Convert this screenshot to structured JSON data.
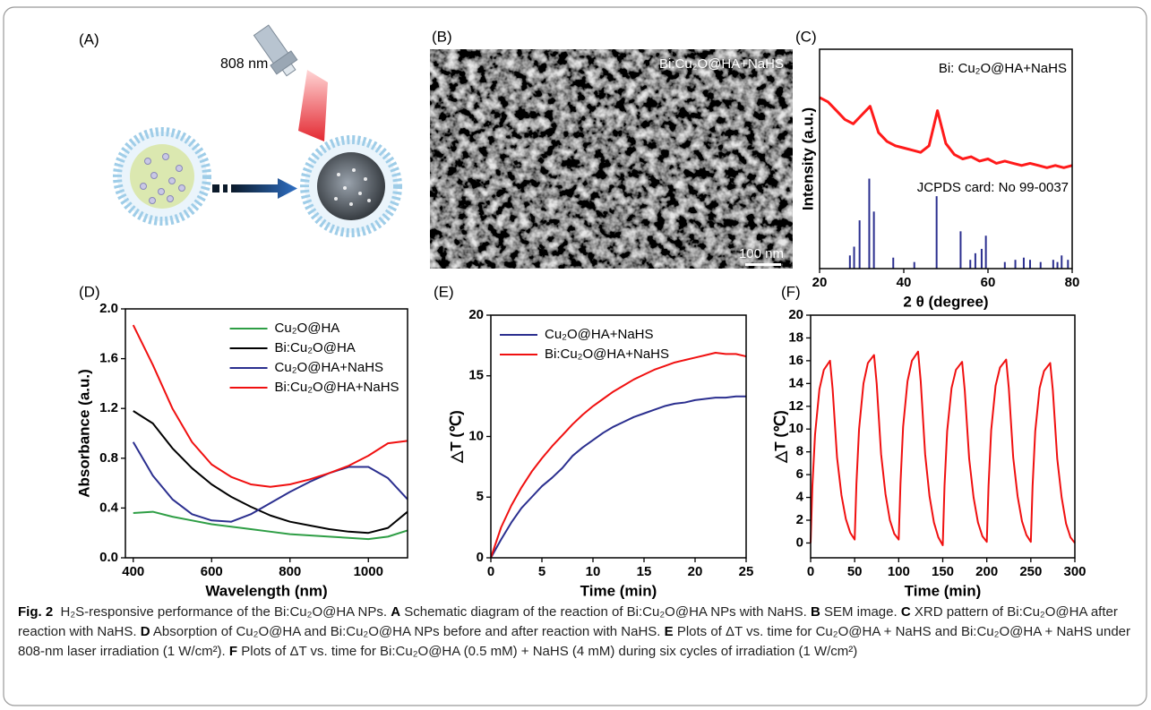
{
  "panel_labels": [
    "(A)",
    "(B)",
    "(C)",
    "(D)",
    "(E)",
    "(F)"
  ],
  "schematic": {
    "laser_label": "808 nm"
  },
  "sem_image": {
    "label": "Bi:Cu₂O@HA+NaHS",
    "scale_bar": "100 nm"
  },
  "chart_data": [
    {
      "type": "line",
      "xlabel": "2 θ (degree)",
      "ylabel": "Intensity (a.u.)",
      "legend": "upper right",
      "xlim": [
        20,
        80
      ],
      "xticks": [
        20,
        40,
        60,
        80
      ],
      "ylim": [
        0,
        100
      ],
      "x": [
        20,
        22,
        24,
        26,
        28,
        30,
        32,
        34,
        36,
        38,
        40,
        42,
        44,
        46,
        48,
        50,
        52,
        54,
        56,
        58,
        60,
        62,
        64,
        66,
        68,
        70,
        72,
        74,
        76,
        78,
        80
      ],
      "series": [
        {
          "name": "Bi: Cu₂O@HA+NaHS",
          "color": "#ff1a1a",
          "values": [
            78,
            76,
            72,
            68,
            66,
            70,
            74,
            62,
            58,
            56,
            55,
            54,
            53,
            56,
            72,
            57,
            52,
            50,
            51,
            49,
            50,
            48,
            49,
            48,
            47,
            48,
            47,
            46,
            47,
            46,
            47
          ]
        }
      ],
      "reference": {
        "name": "JCPDS card: No 99-0037",
        "color": "#2b2f8f",
        "positions": [
          27.2,
          28.2,
          29.5,
          31.8,
          32.9,
          37.5,
          42.5,
          47.8,
          53.5,
          55.8,
          57,
          58.5,
          59.5,
          64,
          66.5,
          68.5,
          70,
          72.5,
          75.5,
          76.5,
          77.5,
          79
        ],
        "values": [
          6,
          10,
          22,
          41,
          26,
          5,
          3,
          33,
          17,
          4,
          7,
          9,
          15,
          3,
          4,
          5,
          4,
          3,
          4,
          3,
          6,
          4
        ]
      }
    },
    {
      "type": "line",
      "xlabel": "Wavelength (nm)",
      "ylabel": "Absorbance (a.u.)",
      "legend": "upper center",
      "xlim": [
        380,
        1100
      ],
      "xticks": [
        400,
        600,
        800,
        1000
      ],
      "ylim": [
        0,
        2
      ],
      "yticks": [
        {
          "value": 0,
          "label": "0.0"
        },
        0.4,
        0.8,
        1.2,
        1.6,
        {
          "value": 2,
          "label": "2.0"
        }
      ],
      "x": [
        400,
        450,
        500,
        550,
        600,
        650,
        700,
        750,
        800,
        850,
        900,
        950,
        1000,
        1050,
        1100
      ],
      "series": [
        {
          "name": "Cu₂O@HA",
          "color": "#2e9e45",
          "values": [
            0.36,
            0.37,
            0.33,
            0.3,
            0.27,
            0.25,
            0.23,
            0.21,
            0.19,
            0.18,
            0.17,
            0.16,
            0.15,
            0.17,
            0.22
          ]
        },
        {
          "name": "Bi:Cu₂O@HA",
          "color": "#000000",
          "values": [
            1.18,
            1.08,
            0.88,
            0.72,
            0.59,
            0.49,
            0.41,
            0.34,
            0.29,
            0.26,
            0.23,
            0.21,
            0.2,
            0.24,
            0.37
          ]
        },
        {
          "name": "Cu₂O@HA+NaHS",
          "color": "#2b2f8f",
          "values": [
            0.93,
            0.66,
            0.47,
            0.35,
            0.3,
            0.29,
            0.35,
            0.44,
            0.53,
            0.61,
            0.68,
            0.73,
            0.73,
            0.64,
            0.47
          ]
        },
        {
          "name": "Bi:Cu₂O@HA+NaHS",
          "color": "#f01010",
          "values": [
            1.87,
            1.55,
            1.2,
            0.93,
            0.75,
            0.65,
            0.59,
            0.57,
            0.59,
            0.63,
            0.68,
            0.74,
            0.82,
            0.92,
            0.94
          ]
        }
      ]
    },
    {
      "type": "line",
      "xlabel": "Time (min)",
      "ylabel": "△T (℃)",
      "legend": "upper left",
      "xlim": [
        0,
        25
      ],
      "xticks": [
        0,
        5,
        10,
        15,
        20,
        25
      ],
      "ylim": [
        0,
        20
      ],
      "yticks": [
        0,
        5,
        10,
        15,
        20
      ],
      "x": [
        0,
        1,
        2,
        3,
        4,
        5,
        6,
        7,
        8,
        9,
        10,
        11,
        12,
        13,
        14,
        15,
        16,
        17,
        18,
        19,
        20,
        21,
        22,
        23,
        24,
        25
      ],
      "series": [
        {
          "name": "Cu₂O@HA+NaHS",
          "color": "#2b2f8f",
          "values": [
            0,
            1.5,
            2.9,
            4.1,
            5.0,
            5.9,
            6.6,
            7.4,
            8.4,
            9.1,
            9.7,
            10.3,
            10.8,
            11.2,
            11.6,
            11.9,
            12.2,
            12.5,
            12.7,
            12.8,
            13.0,
            13.1,
            13.2,
            13.2,
            13.3,
            13.3
          ]
        },
        {
          "name": "Bi:Cu₂O@HA+NaHS",
          "color": "#f01010",
          "values": [
            0,
            2.5,
            4.3,
            5.8,
            7.1,
            8.2,
            9.2,
            10.1,
            11.0,
            11.8,
            12.5,
            13.1,
            13.7,
            14.2,
            14.7,
            15.1,
            15.5,
            15.8,
            16.1,
            16.3,
            16.5,
            16.7,
            16.9,
            16.8,
            16.8,
            16.6
          ]
        }
      ]
    },
    {
      "type": "line",
      "xlabel": "Time (min)",
      "ylabel": "△T (℃)",
      "xlim": [
        0,
        300
      ],
      "xticks": [
        0,
        50,
        100,
        150,
        200,
        250,
        300
      ],
      "ylim": [
        -1.3,
        20
      ],
      "yticks": [
        0,
        2,
        4,
        6,
        8,
        10,
        12,
        14,
        16,
        18,
        20
      ],
      "x": [
        0,
        2,
        5,
        10,
        15,
        22,
        25,
        30,
        35,
        40,
        45,
        50,
        52,
        55,
        60,
        65,
        72,
        75,
        80,
        85,
        90,
        95,
        100,
        102,
        105,
        110,
        115,
        122,
        125,
        130,
        135,
        140,
        145,
        150,
        152,
        155,
        160,
        165,
        172,
        175,
        180,
        185,
        190,
        195,
        200,
        202,
        205,
        210,
        215,
        222,
        225,
        230,
        235,
        240,
        245,
        250,
        252,
        255,
        260,
        265,
        272,
        275,
        280,
        285,
        290,
        295,
        300
      ],
      "series": [
        {
          "color": "#f01010",
          "values": [
            0,
            5,
            9.5,
            13.5,
            15.2,
            16.0,
            13.5,
            7.5,
            4.2,
            2.1,
            0.9,
            0.3,
            5.2,
            10,
            14,
            15.8,
            16.5,
            14,
            7.8,
            4.3,
            2.0,
            0.8,
            0.3,
            5.2,
            10.2,
            14.2,
            16,
            16.8,
            14.2,
            7.8,
            4.1,
            1.8,
            0.5,
            -0.2,
            5,
            9.8,
            13.6,
            15.2,
            15.9,
            13.4,
            7.4,
            4.0,
            1.8,
            0.6,
            0.1,
            5,
            9.9,
            13.8,
            15.4,
            16.1,
            13.6,
            7.5,
            4.1,
            1.9,
            0.7,
            0.1,
            5,
            9.8,
            13.6,
            15.1,
            15.8,
            13.4,
            7.4,
            4.0,
            1.7,
            0.5,
            0
          ]
        }
      ]
    }
  ],
  "caption": {
    "label": "Fig. 2",
    "title": "H₂S-responsive performance of the Bi:Cu₂O@HA NPs.",
    "items": [
      {
        "letter": "A",
        "text": "Schematic diagram of the reaction of Bi:Cu₂O@HA NPs with NaHS."
      },
      {
        "letter": "B",
        "text": "SEM image."
      },
      {
        "letter": "C",
        "text": "XRD pattern of Bi:Cu₂O@HA after reaction with NaHS."
      },
      {
        "letter": "D",
        "text": "Absorption of Cu₂O@HA and Bi:Cu₂O@HA NPs before and after reaction with NaHS."
      },
      {
        "letter": "E",
        "text": "Plots of ΔT vs. time for Cu₂O@HA + NaHS and Bi:Cu₂O@HA + NaHS under 808-nm laser irradiation (1 W/cm²)."
      },
      {
        "letter": "F",
        "text": "Plots of ΔT vs. time for Bi:Cu₂O@HA (0.5 mM) + NaHS (4 mM) during six cycles of irradiation (1 W/cm²)"
      }
    ]
  }
}
